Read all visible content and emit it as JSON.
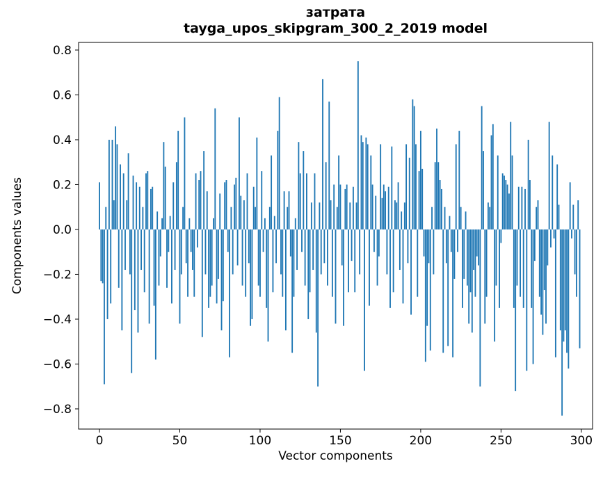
{
  "figure": {
    "title_word": "затрата",
    "title_model": "tayga_upos_skipgram_300_2_2019 model",
    "xlabel": "Vector components",
    "ylabel": "Components values"
  },
  "chart_data": {
    "type": "bar",
    "title": "затрата — tayga_upos_skipgram_300_2_2019 model",
    "xlabel": "Vector components",
    "ylabel": "Components values",
    "bar_color": "#1f77b4",
    "grid": false,
    "legend": null,
    "x_is_index": true,
    "n_components": 300,
    "xlim": [
      -13,
      307
    ],
    "ylim": [
      -0.89,
      0.834
    ],
    "x_ticks": [
      0,
      50,
      100,
      150,
      200,
      250,
      300
    ],
    "y_ticks": [
      -0.8,
      -0.6,
      -0.4,
      -0.2,
      0.0,
      0.2,
      0.4,
      0.6,
      0.8
    ],
    "values": [
      0.21,
      -0.23,
      -0.24,
      -0.69,
      0.1,
      -0.4,
      0.4,
      -0.33,
      0.4,
      0.13,
      0.46,
      0.38,
      -0.26,
      0.29,
      -0.45,
      0.25,
      -0.18,
      0.13,
      0.34,
      -0.2,
      -0.64,
      0.24,
      -0.36,
      0.21,
      -0.46,
      0.19,
      -0.18,
      0.1,
      -0.28,
      0.25,
      0.26,
      -0.42,
      0.18,
      0.19,
      -0.34,
      -0.58,
      0.08,
      -0.25,
      -0.12,
      0.05,
      0.39,
      0.28,
      -0.26,
      -0.1,
      0.06,
      -0.33,
      0.21,
      -0.18,
      0.3,
      0.44,
      -0.42,
      -0.2,
      0.1,
      0.5,
      -0.15,
      -0.3,
      0.05,
      -0.1,
      -0.18,
      -0.3,
      0.25,
      -0.08,
      0.22,
      0.26,
      -0.48,
      0.35,
      -0.2,
      0.17,
      -0.35,
      -0.3,
      -0.25,
      0.05,
      0.54,
      -0.33,
      -0.22,
      0.16,
      -0.45,
      -0.32,
      0.21,
      0.22,
      -0.1,
      -0.57,
      0.1,
      -0.2,
      0.2,
      0.23,
      -0.16,
      0.5,
      0.15,
      -0.25,
      0.13,
      -0.3,
      0.25,
      -0.15,
      -0.43,
      -0.4,
      0.19,
      0.1,
      0.41,
      -0.25,
      -0.3,
      0.26,
      -0.1,
      0.05,
      -0.35,
      -0.5,
      0.1,
      0.33,
      -0.28,
      0.06,
      -0.15,
      0.44,
      0.59,
      -0.2,
      -0.3,
      0.17,
      -0.45,
      0.1,
      0.17,
      -0.12,
      -0.55,
      -0.3,
      0.05,
      -0.18,
      0.39,
      0.25,
      -0.1,
      0.35,
      -0.25,
      0.25,
      -0.4,
      -0.28,
      0.12,
      -0.18,
      0.25,
      -0.46,
      -0.7,
      0.12,
      -0.2,
      0.67,
      -0.15,
      0.3,
      -0.25,
      0.57,
      0.13,
      -0.3,
      0.2,
      -0.42,
      0.1,
      0.33,
      0.2,
      -0.16,
      -0.43,
      0.18,
      0.2,
      -0.28,
      0.12,
      -0.14,
      0.19,
      -0.28,
      0.12,
      0.75,
      -0.2,
      0.42,
      0.39,
      -0.63,
      0.41,
      0.38,
      -0.34,
      0.33,
      0.2,
      -0.1,
      0.15,
      -0.25,
      -0.12,
      0.38,
      0.14,
      0.2,
      0.17,
      -0.2,
      0.19,
      -0.35,
      0.37,
      -0.28,
      0.13,
      0.12,
      0.21,
      -0.18,
      0.08,
      -0.33,
      0.12,
      0.38,
      -0.15,
      0.32,
      -0.38,
      0.58,
      0.55,
      0.38,
      -0.3,
      0.26,
      0.44,
      0.27,
      -0.12,
      -0.59,
      -0.43,
      -0.15,
      -0.54,
      0.1,
      -0.2,
      0.3,
      0.45,
      0.3,
      0.22,
      0.18,
      -0.55,
      0.1,
      -0.15,
      -0.52,
      0.06,
      -0.1,
      -0.57,
      -0.22,
      0.38,
      -0.1,
      0.44,
      0.1,
      -0.35,
      -0.22,
      0.08,
      -0.25,
      -0.42,
      -0.28,
      -0.46,
      -0.18,
      -0.3,
      -0.12,
      -0.16,
      -0.7,
      0.55,
      0.35,
      -0.42,
      -0.3,
      0.12,
      0.1,
      0.42,
      0.47,
      -0.5,
      -0.25,
      0.33,
      -0.35,
      -0.06,
      0.25,
      0.24,
      0.22,
      0.2,
      0.16,
      0.48,
      0.33,
      -0.35,
      -0.72,
      -0.25,
      0.19,
      -0.3,
      0.19,
      -0.35,
      0.18,
      -0.63,
      0.4,
      0.22,
      -0.35,
      -0.6,
      -0.14,
      0.1,
      0.13,
      -0.3,
      -0.38,
      -0.47,
      -0.27,
      -0.42,
      -0.16,
      0.48,
      -0.08,
      0.33,
      -0.04,
      -0.57,
      0.29,
      0.11,
      -0.45,
      -0.83,
      -0.5,
      -0.45,
      -0.55,
      -0.62,
      0.21,
      -0.04,
      0.11,
      -0.2,
      -0.3,
      0.13,
      -0.53
    ]
  }
}
